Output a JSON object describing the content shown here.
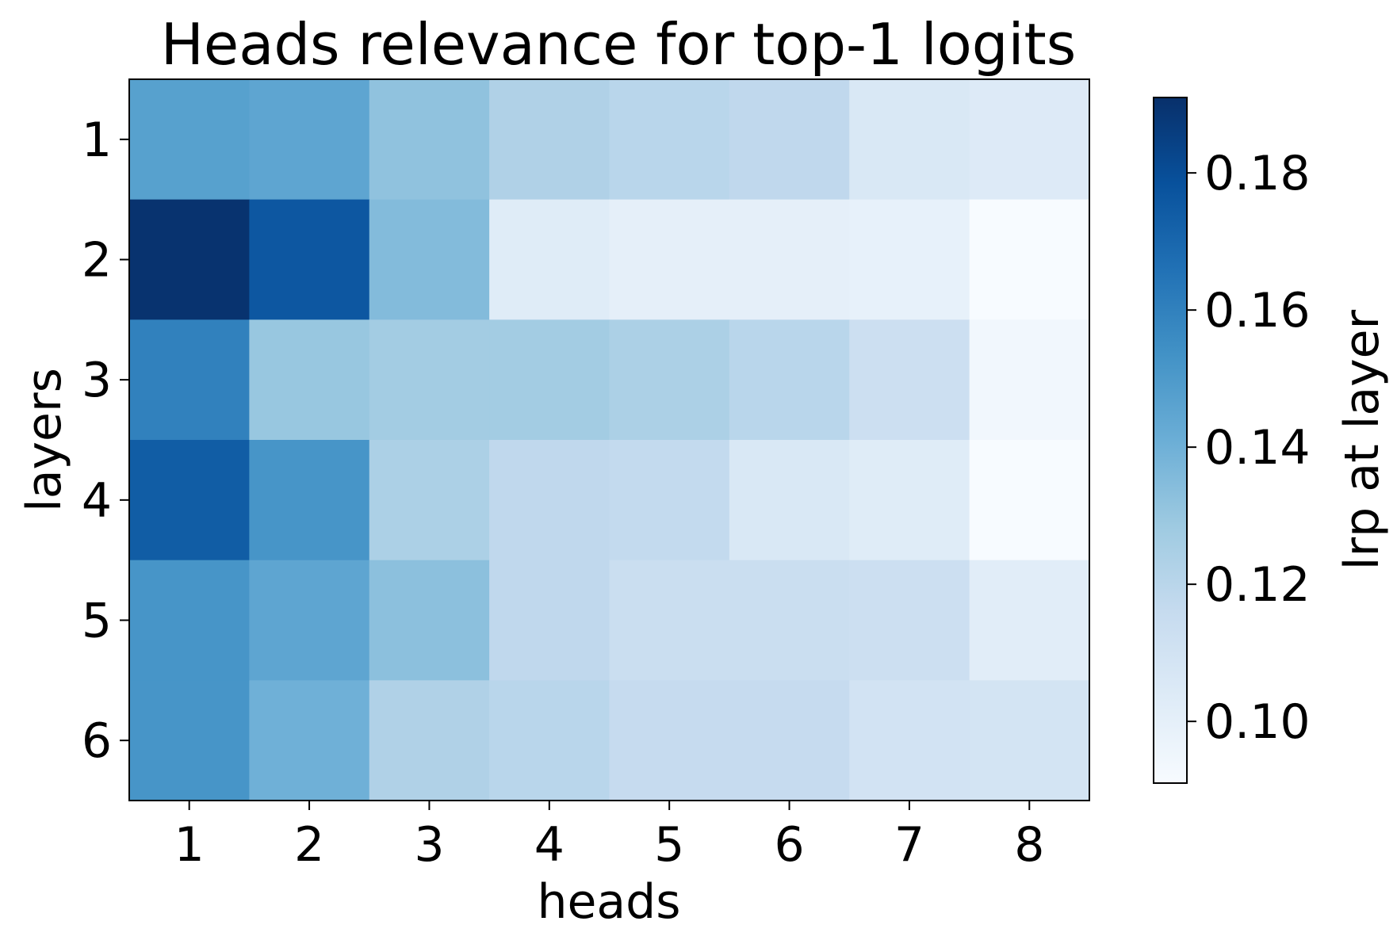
{
  "chart_data": {
    "type": "heatmap",
    "title": "Heads relevance for top-1 logits",
    "xlabel": "heads",
    "ylabel": "layers",
    "x_categories": [
      "1",
      "2",
      "3",
      "4",
      "5",
      "6",
      "7",
      "8"
    ],
    "y_categories": [
      "1",
      "2",
      "3",
      "4",
      "5",
      "6"
    ],
    "values": [
      [
        0.147,
        0.145,
        0.132,
        0.123,
        0.12,
        0.118,
        0.106,
        0.104
      ],
      [
        0.19,
        0.176,
        0.135,
        0.103,
        0.1,
        0.1,
        0.099,
        0.091
      ],
      [
        0.16,
        0.13,
        0.127,
        0.127,
        0.124,
        0.12,
        0.113,
        0.094
      ],
      [
        0.174,
        0.152,
        0.124,
        0.118,
        0.117,
        0.106,
        0.103,
        0.091
      ],
      [
        0.152,
        0.145,
        0.133,
        0.118,
        0.114,
        0.114,
        0.113,
        0.102
      ],
      [
        0.152,
        0.14,
        0.123,
        0.12,
        0.116,
        0.116,
        0.11,
        0.109
      ]
    ],
    "colorbar": {
      "label": "lrp at layer",
      "range": [
        0.091,
        0.191
      ],
      "ticks": [
        0.18,
        0.16,
        0.14,
        0.12,
        0.1
      ],
      "tick_labels": [
        "0.18",
        "0.16",
        "0.14",
        "0.12",
        "0.10"
      ],
      "colormap": "Blues",
      "colormap_stops": [
        "#f7fbff",
        "#deebf7",
        "#c6dbef",
        "#9ecae1",
        "#6baed6",
        "#4292c6",
        "#2171b5",
        "#08519c",
        "#08306b"
      ]
    }
  }
}
